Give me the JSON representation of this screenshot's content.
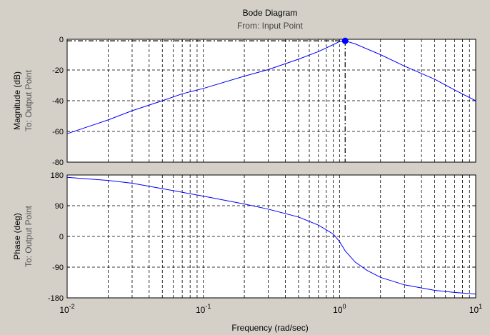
{
  "figure": {
    "title": "Bode Diagram",
    "subtitle": "From: Input Point",
    "xlabel": "Frequency (rad/sec)",
    "background": "#d4d0c8",
    "line_color": "#0000ff",
    "grid_color": "#000000"
  },
  "chart_data": [
    {
      "type": "line",
      "xscale": "log",
      "xlim": [
        0.01,
        10
      ],
      "ylim": [
        -80,
        0
      ],
      "yticks": [
        0,
        -20,
        -40,
        -60,
        -80
      ],
      "ylabel_top": "Magnitude (dB)",
      "ylabel_bottom": "To: Output Point",
      "grid": true,
      "series": [
        {
          "x": [
            0.01,
            0.02,
            0.03,
            0.05,
            0.07,
            0.1,
            0.2,
            0.3,
            0.5,
            0.7,
            0.9,
            1.0,
            1.1,
            1.3,
            2,
            3,
            5,
            7,
            10
          ],
          "y": [
            -61.5,
            -52.5,
            -46.5,
            -40,
            -35.5,
            -32,
            -24,
            -19.7,
            -13,
            -8,
            -3.5,
            -1.5,
            -1,
            -3,
            -10,
            -17.5,
            -26,
            -33,
            -40
          ]
        }
      ],
      "marker": {
        "x": 1.1,
        "y": -1
      }
    },
    {
      "type": "line",
      "xscale": "log",
      "xlim": [
        0.01,
        10
      ],
      "ylim": [
        -180,
        180
      ],
      "yticks": [
        180,
        90,
        0,
        -90,
        -180
      ],
      "ylabel_top": "Phase (deg)",
      "ylabel_bottom": "To: Output Point",
      "grid": true,
      "series": [
        {
          "x": [
            0.01,
            0.02,
            0.03,
            0.05,
            0.1,
            0.2,
            0.3,
            0.5,
            0.7,
            0.9,
            1.0,
            1.1,
            1.3,
            1.6,
            2,
            3,
            5,
            7,
            10
          ],
          "y": [
            173,
            164,
            156,
            140,
            118,
            95,
            80,
            57,
            33,
            7,
            -15,
            -42,
            -75,
            -100,
            -120,
            -142,
            -158,
            -164,
            -169
          ]
        }
      ]
    }
  ],
  "xticks": [
    {
      "value": 0.01,
      "base": "10",
      "exp": "-2"
    },
    {
      "value": 0.1,
      "base": "10",
      "exp": "-1"
    },
    {
      "value": 1,
      "base": "10",
      "exp": "0"
    },
    {
      "value": 10,
      "base": "10",
      "exp": "1"
    }
  ]
}
